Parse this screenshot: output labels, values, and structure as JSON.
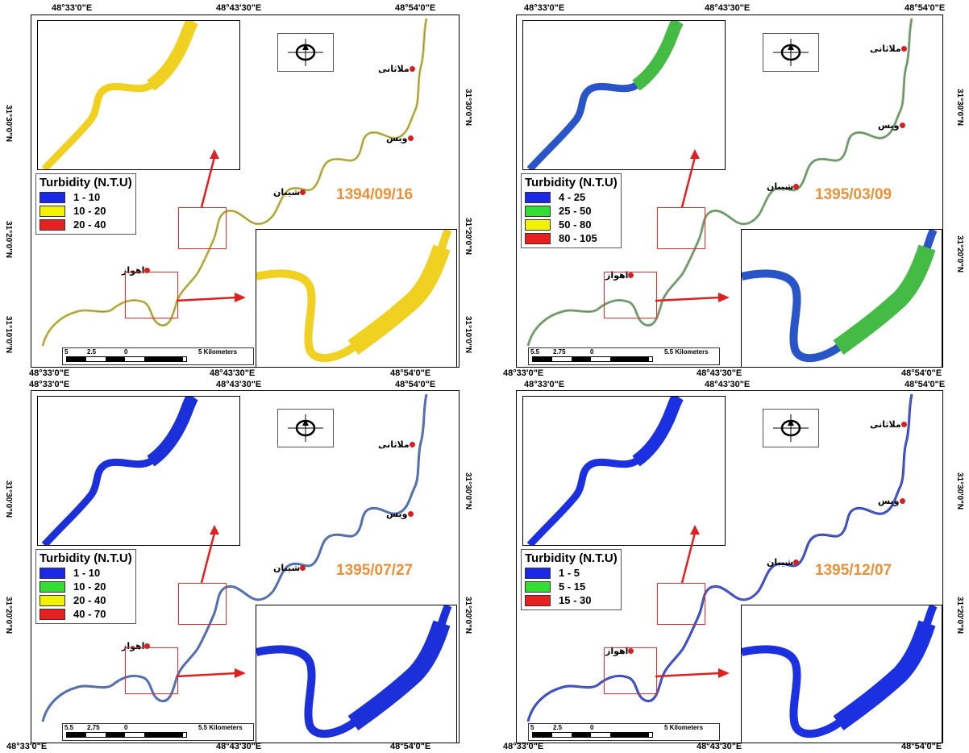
{
  "coords": {
    "lon_left": "48°33'0\"E",
    "lon_mid": "48°43'30\"E",
    "lon_right": "48°54'0\"E",
    "lat_30": "31°30'0\"N",
    "lat_20": "31°20'0\"N",
    "lat_10": "31°10'0\"N"
  },
  "places": {
    "mollasani": "ملاثانی",
    "veys": "ویس",
    "shiban": "شیبان",
    "ahvaz": "اهواز"
  },
  "legend_title": "Turbidity (N.T.U)",
  "panels": [
    {
      "date": "1394/09/16",
      "legend": [
        {
          "label": "1 - 10",
          "color": "#1b28e6"
        },
        {
          "label": "10 - 20",
          "color": "#f2f200"
        },
        {
          "label": "20 - 40",
          "color": "#e82020"
        }
      ],
      "scale": {
        "l0": "5",
        "l1": "2.5",
        "l2": "0",
        "l3": "5 Kilometers"
      },
      "river_color": "#d8c830",
      "inset_colors": [
        "#f0d020",
        "#f0d020"
      ]
    },
    {
      "date": "1395/03/09",
      "legend": [
        {
          "label": "4 - 25",
          "color": "#1b28e6"
        },
        {
          "label": "25 - 50",
          "color": "#33dd33"
        },
        {
          "label": "50 - 80",
          "color": "#f2f200"
        },
        {
          "label": "80 - 105",
          "color": "#e82020"
        }
      ],
      "scale": {
        "l0": "5.5",
        "l1": "2.75",
        "l2": "0",
        "l3": "5.5 Kilometers"
      },
      "river_color": "#7fae60",
      "inset_colors": [
        "#2a55c8",
        "#44bb44"
      ]
    },
    {
      "date": "1395/07/27",
      "legend": [
        {
          "label": "1 - 10",
          "color": "#1b28e6"
        },
        {
          "label": "10 - 20",
          "color": "#33dd33"
        },
        {
          "label": "20 - 40",
          "color": "#f2f200"
        },
        {
          "label": "40 - 70",
          "color": "#e82020"
        }
      ],
      "scale": {
        "l0": "5.5",
        "l1": "2.75",
        "l2": "0",
        "l3": "5.5 Kilometers"
      },
      "river_color": "#4a6ab0",
      "inset_colors": [
        "#1b30d8",
        "#1b30d8"
      ]
    },
    {
      "date": "1395/12/07",
      "legend": [
        {
          "label": "1 - 5",
          "color": "#1b28e6"
        },
        {
          "label": "5 - 15",
          "color": "#33dd33"
        },
        {
          "label": "15 - 30",
          "color": "#e82020"
        }
      ],
      "scale": {
        "l0": "5",
        "l1": "2.5",
        "l2": "0",
        "l3": "5 Kilometers"
      },
      "river_color": "#2a3ac8",
      "inset_colors": [
        "#1b30e0",
        "#1b30e0"
      ]
    }
  ]
}
